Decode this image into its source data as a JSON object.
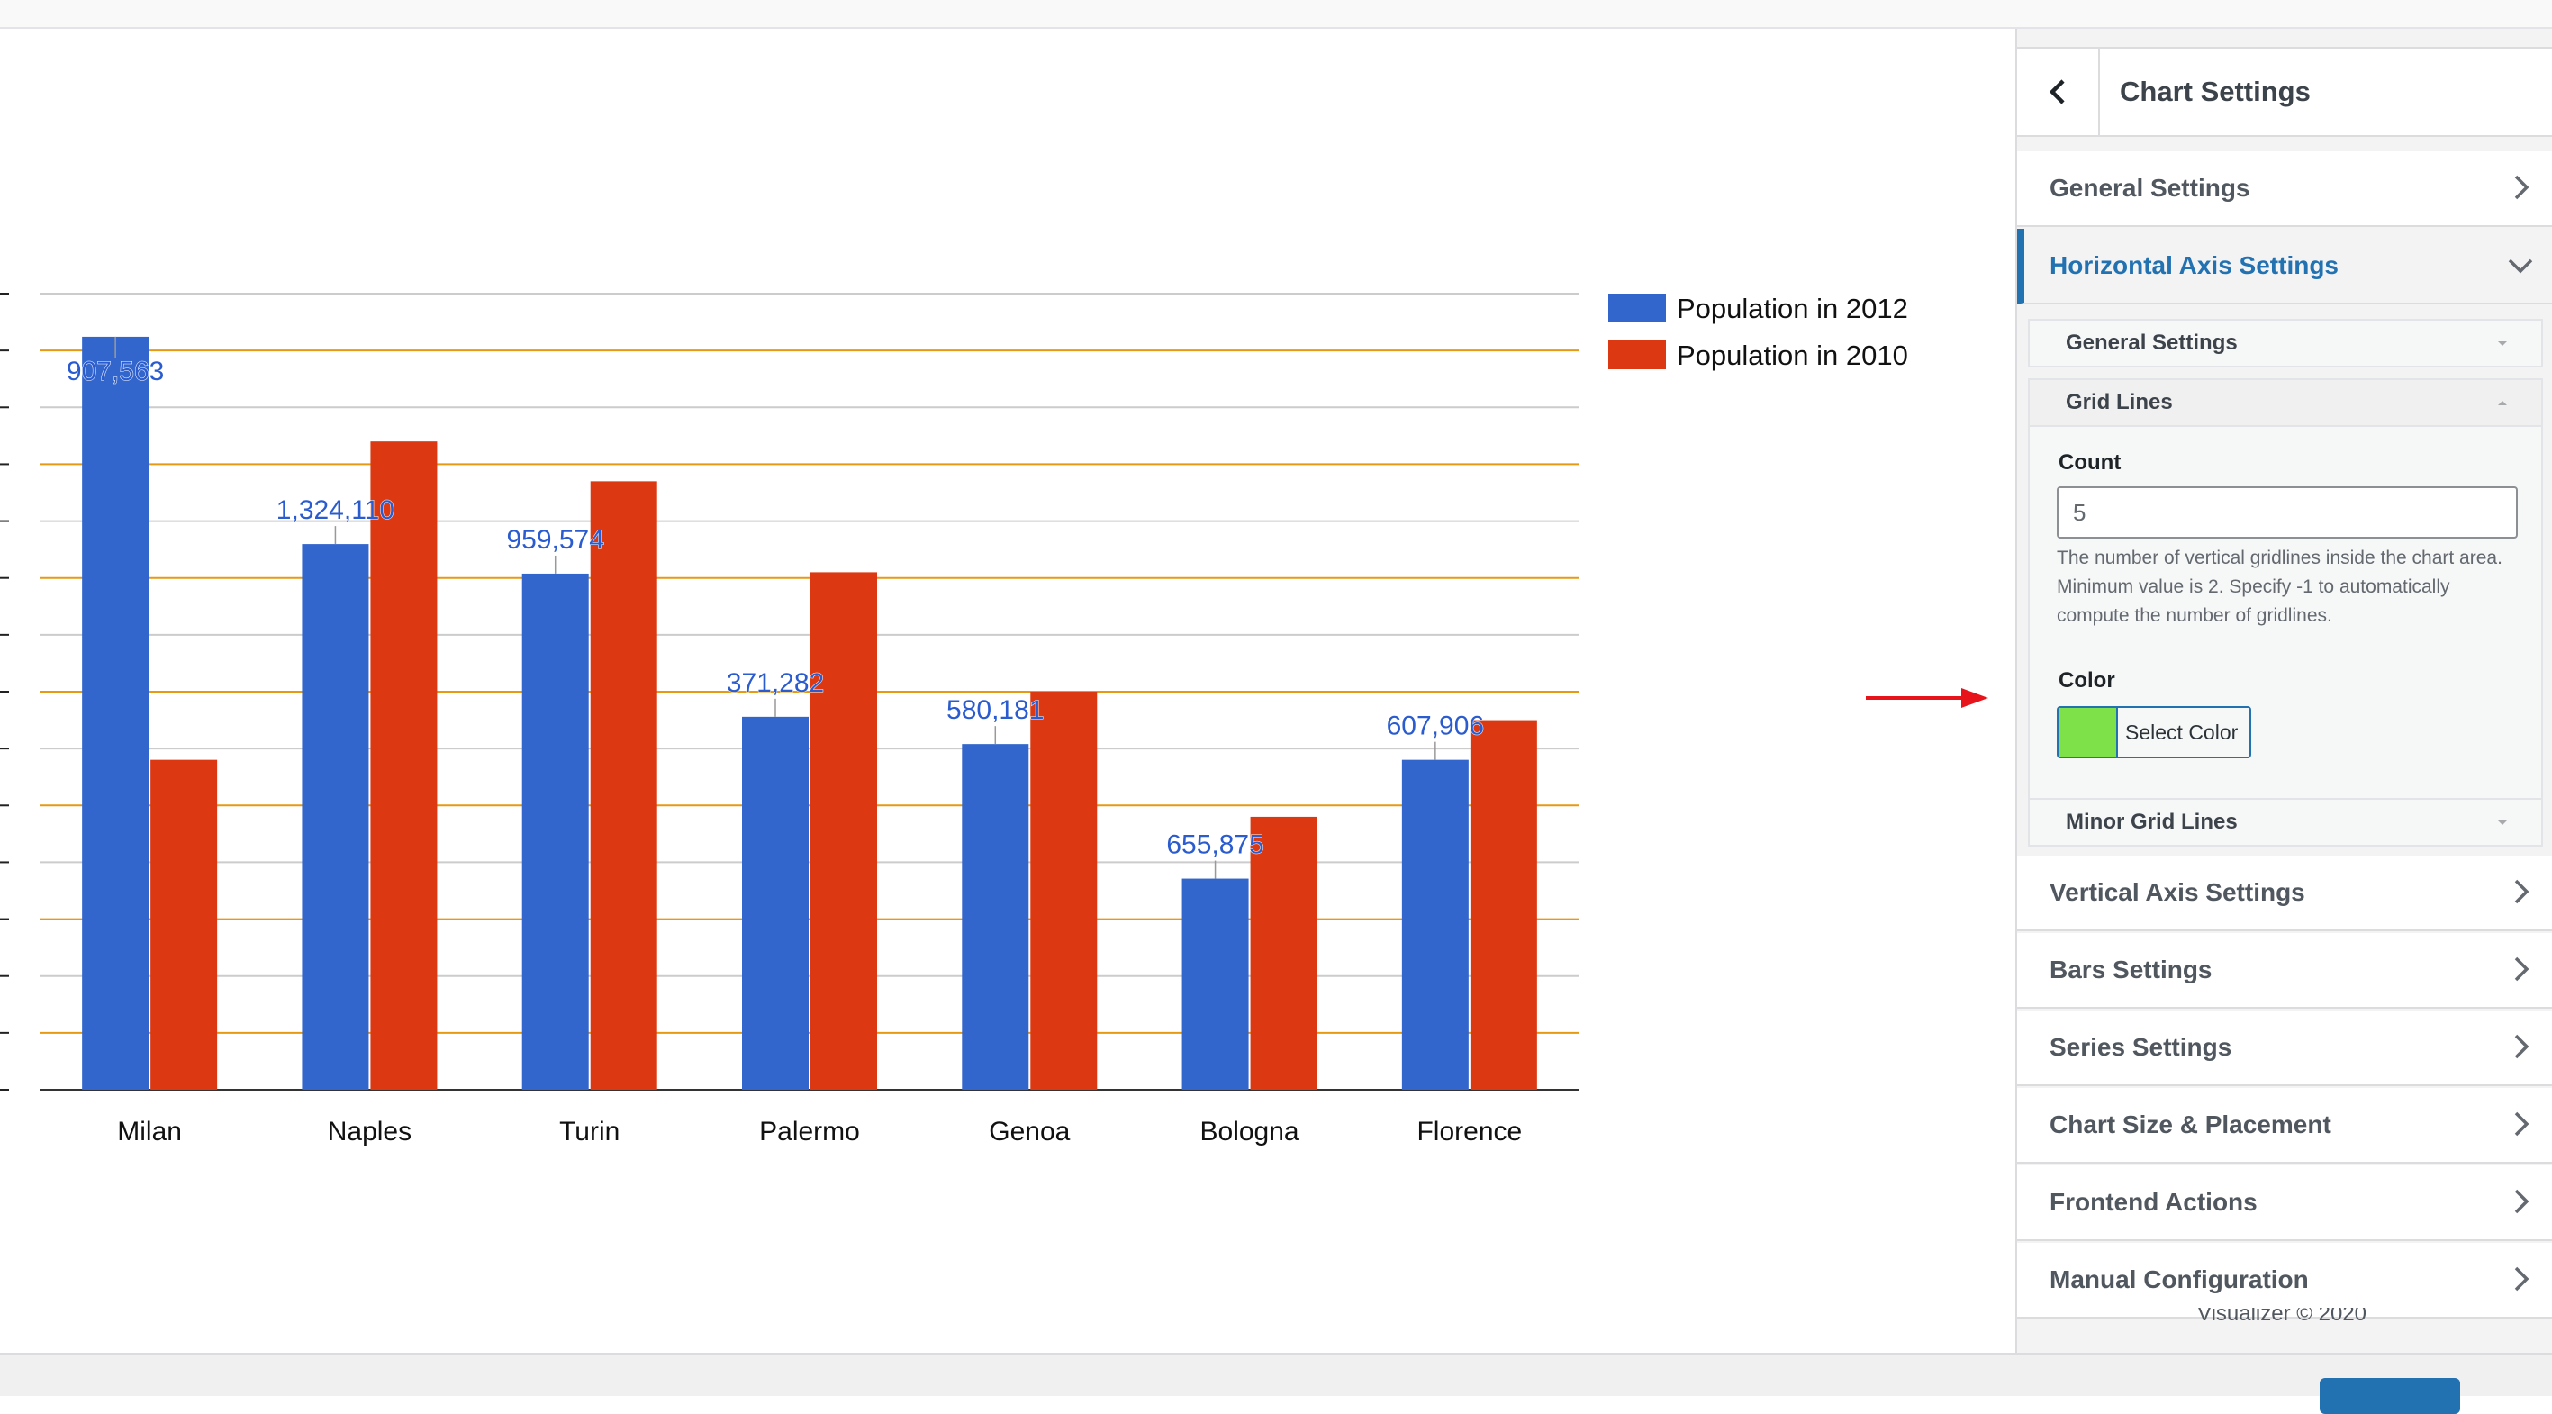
{
  "chart_data": {
    "type": "bar",
    "categories": [
      "Milan",
      "Naples",
      "Turin",
      "Palermo",
      "Genoa",
      "Bologna",
      "Florence"
    ],
    "series": [
      {
        "name": "Population in 2012",
        "color": "#3366cc",
        "values": [
          1324110,
          959574,
          907563,
          655875,
          607906,
          371282,
          580181
        ]
      },
      {
        "name": "Population in 2010",
        "color": "#dc3912",
        "values": [
          580181,
          1140000,
          1070000,
          910000,
          700000,
          480000,
          650000
        ]
      }
    ],
    "data_labels": [
      "907,563",
      "1,324,110",
      "959,574",
      "371,282",
      "580,181",
      "655,875",
      "607,906"
    ],
    "ylim": [
      0,
      1400000
    ],
    "grid": true,
    "legend": "top-right"
  },
  "sidebar": {
    "title": "Chart Settings",
    "back_icon": "chevron-left-icon",
    "sections": [
      {
        "label": "General Settings"
      },
      {
        "label": "Horizontal Axis Settings"
      },
      {
        "label": "Vertical Axis Settings"
      },
      {
        "label": "Bars Settings"
      },
      {
        "label": "Series Settings"
      },
      {
        "label": "Chart Size & Placement"
      },
      {
        "label": "Frontend Actions"
      },
      {
        "label": "Manual Configuration"
      }
    ],
    "subsections": {
      "general": "General Settings",
      "grid_lines": "Grid Lines",
      "minor_grid_lines": "Minor Grid Lines"
    },
    "grid_lines": {
      "count_label": "Count",
      "count_value": "5",
      "count_help": "The number of vertical gridlines inside the chart area. Minimum value is 2. Specify -1 to automatically compute the number of gridlines.",
      "color_label": "Color",
      "color_button_label": "Select Color",
      "color_value": "#7ee14a"
    },
    "footer": "Visualizer © 2020"
  },
  "colors": {
    "accent": "#2271b1",
    "annotation_arrow": "#e8141c",
    "major_grid": "#cccccc",
    "minor_grid": "#e69a14"
  }
}
